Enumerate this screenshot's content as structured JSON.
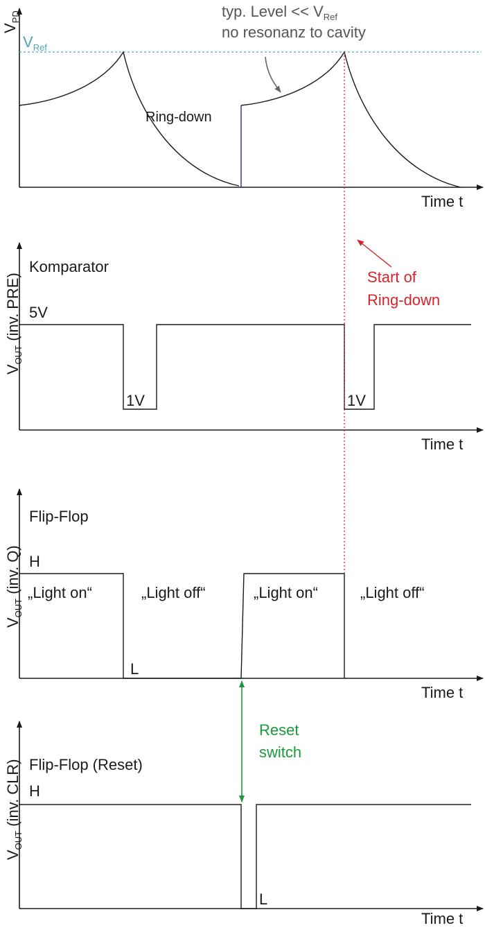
{
  "panels": [
    {
      "y_label": {
        "main": "V",
        "sub": "PD"
      },
      "reference": {
        "main": "V",
        "sub": "Ref"
      },
      "annotation": {
        "line1": "typ. Level << V",
        "line1_sub": "Ref",
        "line2": "no resonanz to cavity"
      },
      "curve_label": "Ring-down",
      "x_label": "Time t"
    },
    {
      "y_label": {
        "main": "V",
        "sub": "OUT",
        "rest": " (inv. PRE)"
      },
      "title": "Komparator",
      "high_label": "5V",
      "low_labels": [
        "1V",
        "1V"
      ],
      "annotation": {
        "line1": "Start of",
        "line2": "Ring-down"
      },
      "x_label": "Time t"
    },
    {
      "y_label": {
        "main": "V",
        "sub": "OUT",
        "rest": " (inv. Q)"
      },
      "title": "Flip-Flop",
      "high_label": "H",
      "low_label": "L",
      "state_labels": [
        "„Light on“",
        "„Light off“",
        "„Light on“",
        "„Light off“"
      ],
      "x_label": "Time t"
    },
    {
      "y_label": {
        "main": "V",
        "sub": "OUT",
        "rest": " (inv. CLR)"
      },
      "title": "Flip-Flop (Reset)",
      "high_label": "H",
      "low_label": "L",
      "annotation": {
        "line1": "Reset",
        "line2": "switch"
      },
      "x_label": "Time t"
    }
  ]
}
